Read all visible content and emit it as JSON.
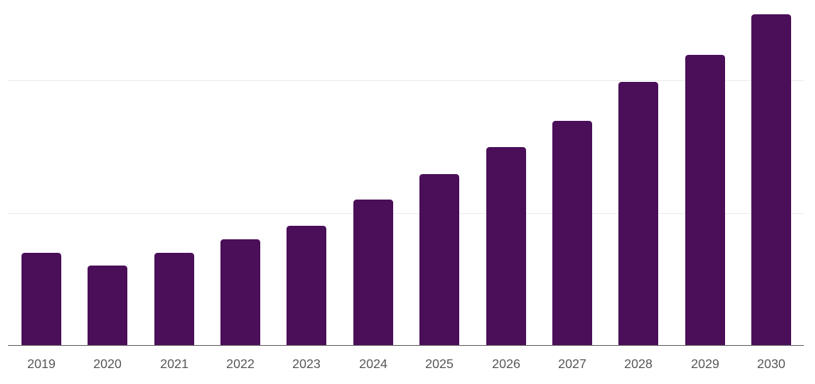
{
  "chart_data": {
    "type": "bar",
    "title": "",
    "xlabel": "",
    "ylabel": "",
    "categories": [
      "2019",
      "2020",
      "2021",
      "2022",
      "2023",
      "2024",
      "2025",
      "2026",
      "2027",
      "2028",
      "2029",
      "2030"
    ],
    "values": [
      116,
      100,
      116,
      133,
      150,
      183,
      215,
      249,
      282,
      331,
      365,
      416
    ],
    "value_units": "relative (pixel height; gridlines every 167)",
    "gridlines": [
      167,
      334
    ],
    "ylim": [
      0,
      420
    ],
    "grid": true,
    "legend": null,
    "color": "#4b0f59"
  }
}
